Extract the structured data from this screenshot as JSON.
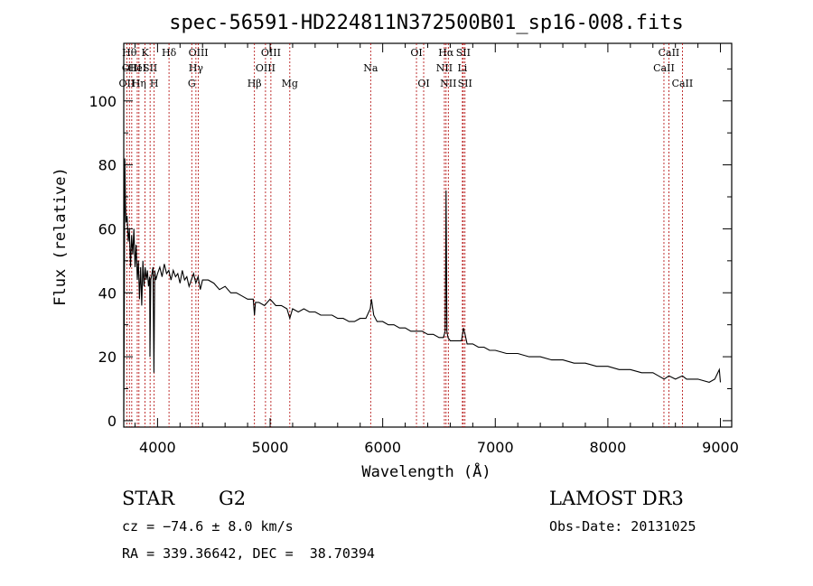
{
  "chart_data": {
    "type": "line",
    "title": "spec-56591-HD224811N372500B01_sp16-008.fits",
    "xlabel": "Wavelength (Å)",
    "ylabel": "Flux (relative)",
    "xlim": [
      3700,
      9100
    ],
    "ylim": [
      -2,
      118
    ],
    "xticks": [
      4000,
      5000,
      6000,
      7000,
      8000,
      9000
    ],
    "yticks": [
      0,
      20,
      40,
      60,
      80,
      100
    ],
    "grid": false,
    "series": [
      {
        "name": "flux",
        "x": [
          3700,
          3705,
          3710,
          3715,
          3720,
          3730,
          3740,
          3750,
          3760,
          3770,
          3780,
          3790,
          3800,
          3810,
          3820,
          3830,
          3840,
          3850,
          3860,
          3870,
          3880,
          3890,
          3900,
          3910,
          3920,
          3930,
          3933,
          3940,
          3950,
          3960,
          3968,
          3975,
          3985,
          4000,
          4020,
          4040,
          4060,
          4080,
          4100,
          4120,
          4140,
          4160,
          4180,
          4200,
          4220,
          4240,
          4260,
          4280,
          4300,
          4320,
          4340,
          4360,
          4380,
          4400,
          4450,
          4500,
          4550,
          4600,
          4650,
          4700,
          4750,
          4800,
          4850,
          4861,
          4870,
          4900,
          4950,
          5000,
          5050,
          5100,
          5150,
          5175,
          5200,
          5250,
          5300,
          5350,
          5400,
          5450,
          5500,
          5550,
          5600,
          5650,
          5700,
          5750,
          5800,
          5850,
          5890,
          5900,
          5920,
          5950,
          6000,
          6050,
          6100,
          6150,
          6200,
          6250,
          6300,
          6350,
          6400,
          6450,
          6500,
          6540,
          6555,
          6560,
          6563,
          6566,
          6570,
          6580,
          6600,
          6650,
          6700,
          6717,
          6731,
          6750,
          6800,
          6850,
          6900,
          6950,
          7000,
          7100,
          7200,
          7300,
          7400,
          7500,
          7600,
          7700,
          7800,
          7900,
          8000,
          8100,
          8200,
          8300,
          8400,
          8450,
          8500,
          8542,
          8600,
          8662,
          8700,
          8800,
          8900,
          8950,
          8990,
          9000
        ],
        "values": [
          3,
          35,
          82,
          68,
          62,
          64,
          56,
          60,
          48,
          58,
          52,
          60,
          48,
          55,
          44,
          50,
          38,
          48,
          36,
          50,
          42,
          48,
          44,
          47,
          42,
          45,
          20,
          44,
          46,
          48,
          15,
          47,
          44,
          46,
          48,
          45,
          49,
          46,
          47,
          44,
          47,
          45,
          46,
          43,
          47,
          44,
          45,
          42,
          44,
          46,
          43,
          45,
          41,
          44,
          44,
          43,
          41,
          42,
          40,
          40,
          39,
          38,
          38,
          33,
          37,
          37,
          36,
          38,
          36,
          36,
          35,
          32,
          35,
          34,
          35,
          34,
          34,
          33,
          33,
          33,
          32,
          32,
          31,
          31,
          32,
          32,
          35,
          38,
          33,
          31,
          31,
          30,
          30,
          29,
          29,
          28,
          28,
          28,
          27,
          27,
          26,
          26,
          28,
          50,
          72,
          55,
          28,
          26,
          25,
          25,
          25,
          29,
          27,
          24,
          24,
          23,
          23,
          22,
          22,
          21,
          21,
          20,
          20,
          19,
          19,
          18,
          18,
          17,
          17,
          16,
          16,
          15,
          15,
          14,
          13,
          14,
          13,
          14,
          13,
          13,
          12,
          13,
          16,
          12
        ]
      }
    ],
    "line_markers": [
      {
        "wl": 3727,
        "label": "OII",
        "row": 2
      },
      {
        "wl": 3750,
        "label": "Hθ",
        "row": 0
      },
      {
        "wl": 3771,
        "label": "OIII",
        "row": 1
      },
      {
        "wl": 3820,
        "label": "HeI",
        "row": 1
      },
      {
        "wl": 3835,
        "label": "Hη",
        "row": 2
      },
      {
        "wl": 3889,
        "label": "K",
        "row": 0
      },
      {
        "wl": 3934,
        "label": "SII",
        "row": 1
      },
      {
        "wl": 3970,
        "label": "H",
        "row": 2
      },
      {
        "wl": 4102,
        "label": "Hδ",
        "row": 0
      },
      {
        "wl": 4304,
        "label": "G",
        "row": 2
      },
      {
        "wl": 4341,
        "label": "Hγ",
        "row": 1
      },
      {
        "wl": 4363,
        "label": "OIII",
        "row": 0
      },
      {
        "wl": 4861,
        "label": "Hβ",
        "row": 2
      },
      {
        "wl": 4959,
        "label": "OIII",
        "row": 1
      },
      {
        "wl": 5007,
        "label": "OIII",
        "row": 0
      },
      {
        "wl": 5175,
        "label": "Mg",
        "row": 2
      },
      {
        "wl": 5893,
        "label": "Na",
        "row": 1
      },
      {
        "wl": 6300,
        "label": "OI",
        "row": 0
      },
      {
        "wl": 6364,
        "label": "OI",
        "row": 2
      },
      {
        "wl": 6548,
        "label": "NII",
        "row": 1
      },
      {
        "wl": 6563,
        "label": "Hα",
        "row": 0
      },
      {
        "wl": 6583,
        "label": "NII",
        "row": 2
      },
      {
        "wl": 6708,
        "label": "Li",
        "row": 1
      },
      {
        "wl": 6716,
        "label": "SII",
        "row": 0
      },
      {
        "wl": 6731,
        "label": "SII",
        "row": 2
      },
      {
        "wl": 8498,
        "label": "CaII",
        "row": 1
      },
      {
        "wl": 8542,
        "label": "CaII",
        "row": 0
      },
      {
        "wl": 8662,
        "label": "CaII",
        "row": 2
      }
    ]
  },
  "info": {
    "object_class": "STAR",
    "subclass": "G2",
    "survey": "LAMOST DR3",
    "cz": "cz = −74.6 ± 8.0 km/s",
    "obs_date": "Obs-Date: 20131025",
    "coords": "RA = 339.36642, DEC =  38.70394"
  },
  "colors": {
    "marker_line": "#b00000",
    "spectrum": "#000000",
    "axes": "#000000"
  }
}
